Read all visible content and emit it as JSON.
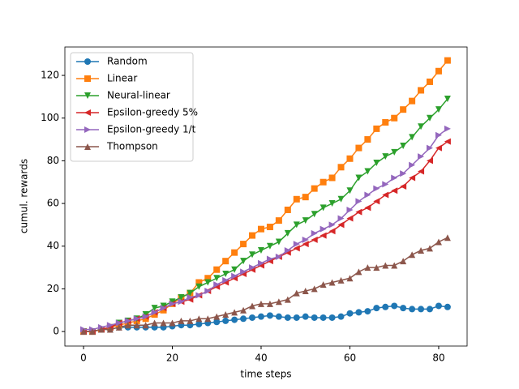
{
  "chart_data": {
    "type": "line",
    "xlabel": "time steps",
    "ylabel": "cumul. rewards",
    "x": [
      0,
      2,
      4,
      6,
      8,
      10,
      12,
      14,
      16,
      18,
      20,
      22,
      24,
      26,
      28,
      30,
      32,
      34,
      36,
      38,
      40,
      42,
      44,
      46,
      48,
      50,
      52,
      54,
      56,
      58,
      60,
      62,
      64,
      66,
      68,
      70,
      72,
      74,
      76,
      78,
      80,
      82
    ],
    "xlim": [
      -4.2,
      86.4
    ],
    "xticks": [
      0,
      20,
      40,
      60,
      80
    ],
    "ylim": [
      -6.8,
      133.3
    ],
    "yticks": [
      0,
      20,
      40,
      60,
      80,
      100,
      120
    ],
    "legend": "upper left",
    "series": [
      {
        "name": "Random",
        "color": "#1f77b4",
        "marker": "circle",
        "values": [
          0,
          0,
          1,
          1,
          2,
          2,
          2,
          2,
          2,
          2,
          2.5,
          3,
          3,
          3.5,
          4,
          4.5,
          5,
          5.5,
          6,
          6.5,
          7,
          7.5,
          7,
          6.5,
          6.5,
          7,
          6.5,
          6.5,
          6.5,
          7,
          8.5,
          9,
          9.5,
          11,
          11.5,
          12,
          11,
          10.5,
          10.5,
          10.5,
          12,
          11.5
        ]
      },
      {
        "name": "Linear",
        "color": "#ff7f0e",
        "marker": "square",
        "values": [
          0,
          0,
          1,
          2,
          3,
          4,
          5,
          6,
          8,
          10,
          13,
          16,
          18,
          23,
          25,
          29,
          33,
          37,
          41,
          45,
          48,
          49,
          52,
          57,
          62,
          63,
          67,
          70,
          72,
          77,
          81,
          86,
          90,
          95,
          98,
          100,
          104,
          108,
          113,
          117,
          122,
          127
        ]
      },
      {
        "name": "Neural-linear",
        "color": "#2ca02c",
        "marker": "tri-down",
        "values": [
          0,
          0,
          1,
          2,
          4,
          5,
          6,
          8,
          11,
          12,
          14,
          16,
          18,
          21,
          23,
          25,
          27,
          29,
          33,
          36,
          38,
          40,
          42,
          46,
          50,
          52,
          55,
          58,
          60,
          62,
          66,
          72,
          75,
          79,
          82,
          84,
          87,
          91,
          96,
          100,
          104,
          109
        ]
      },
      {
        "name": "Epsilon-greedy 5%",
        "color": "#d62728",
        "marker": "tri-left",
        "values": [
          0,
          0,
          1,
          2,
          4,
          5,
          6,
          7,
          9,
          11,
          13,
          14,
          15,
          17,
          19,
          21,
          23,
          25,
          27,
          29,
          31,
          33,
          35,
          37,
          39,
          41,
          43,
          45,
          47,
          50,
          53,
          56,
          58,
          61,
          64,
          66,
          68,
          72,
          75,
          80,
          86,
          89
        ]
      },
      {
        "name": "Epsilon-greedy 1/t",
        "color": "#9467bd",
        "marker": "tri-right",
        "values": [
          1,
          1,
          2,
          3,
          4,
          5,
          6,
          7,
          9,
          11,
          13,
          14,
          16,
          17,
          19,
          22,
          24,
          26,
          28,
          30,
          32,
          34,
          35,
          38,
          41,
          43,
          46,
          48,
          50,
          53,
          57,
          61,
          64,
          67,
          69,
          72,
          74,
          78,
          82,
          86,
          92,
          95
        ]
      },
      {
        "name": "Thompson",
        "color": "#8c564b",
        "marker": "tri-up",
        "values": [
          0,
          0,
          1,
          1,
          2,
          3,
          3,
          3,
          4,
          4,
          4,
          5,
          5,
          6,
          6,
          7,
          8,
          9,
          10,
          12,
          13,
          13,
          14,
          15,
          18,
          19,
          20,
          22,
          23,
          24,
          25,
          28,
          30,
          30,
          31,
          31,
          33,
          36,
          38,
          39,
          42,
          44
        ]
      }
    ]
  }
}
